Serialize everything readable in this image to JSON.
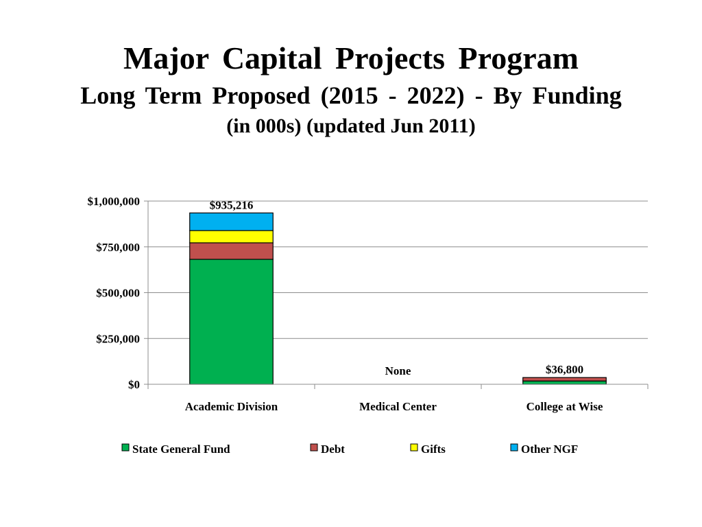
{
  "slide": {
    "title_line1": "Major  Capital  Projects  Program",
    "title_line2": "Long  Term  Proposed  (2015 - 2022) - By  Funding",
    "title_line3": "(in 000s) (updated Jun 2011)"
  },
  "chart_data": {
    "type": "bar",
    "stacked": true,
    "title": "Major  Capital  Projects  Program",
    "xlabel": "",
    "ylabel": "",
    "ylim": [
      0,
      1000000
    ],
    "yticks": [
      0,
      250000,
      500000,
      750000,
      1000000
    ],
    "ytick_labels": [
      "$0",
      "$250,000",
      "$500,000",
      "$750,000",
      "$1,000,000"
    ],
    "grid": true,
    "legend": "bottom",
    "categories": [
      "Academic Division",
      "Medical Center",
      "College at Wise"
    ],
    "series": [
      {
        "name": "State General Fund",
        "color": "#00B050",
        "values": [
          682000,
          0,
          18000
        ]
      },
      {
        "name": "Debt",
        "color": "#C0504D",
        "values": [
          90000,
          0,
          18800
        ]
      },
      {
        "name": "Gifts",
        "color": "#FFFF00",
        "values": [
          67000,
          0,
          0
        ]
      },
      {
        "name": "Other NGF",
        "color": "#00B0F0",
        "values": [
          96216,
          0,
          0
        ]
      }
    ],
    "total_labels": [
      "$935,216",
      "None",
      "$36,800"
    ]
  }
}
